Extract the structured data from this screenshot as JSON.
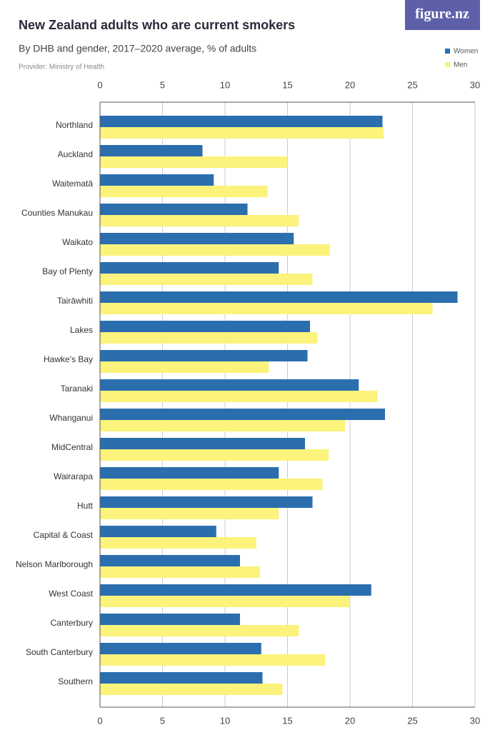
{
  "chart_data": {
    "type": "bar",
    "orientation": "horizontal",
    "title": "New Zealand adults who are current smokers",
    "subtitle": "By DHB and gender, 2017–2020 average, % of adults",
    "source": "Provider: Ministry of Health",
    "logo": "figure.nz",
    "categories": [
      "Northland",
      "Auckland",
      "Waitematā",
      "Counties Manukau",
      "Waikato",
      "Bay of Plenty",
      "Tairāwhiti",
      "Lakes",
      "Hawke's Bay",
      "Taranaki",
      "Whanganui",
      "MidCentral",
      "Wairarapa",
      "Hutt",
      "Capital & Coast",
      "Nelson Marlborough",
      "West Coast",
      "Canterbury",
      "South Canterbury",
      "Southern"
    ],
    "series": [
      {
        "name": "Women",
        "color": "#2b6eae",
        "values": [
          22.6,
          8.2,
          9.1,
          11.8,
          15.5,
          14.3,
          28.6,
          16.8,
          16.6,
          20.7,
          22.8,
          16.4,
          14.3,
          17.0,
          9.3,
          11.2,
          21.7,
          11.2,
          12.9,
          13.0
        ]
      },
      {
        "name": "Men",
        "color": "#fbf37b",
        "values": [
          22.7,
          15.0,
          13.4,
          15.9,
          18.4,
          17.0,
          26.6,
          17.4,
          13.5,
          22.2,
          19.6,
          18.3,
          17.8,
          14.3,
          12.5,
          12.8,
          20.0,
          15.9,
          18.0,
          14.6
        ]
      }
    ],
    "xlim": [
      0,
      30
    ],
    "xticks": [
      0,
      5,
      10,
      15,
      20,
      25,
      30
    ],
    "grid": true
  }
}
